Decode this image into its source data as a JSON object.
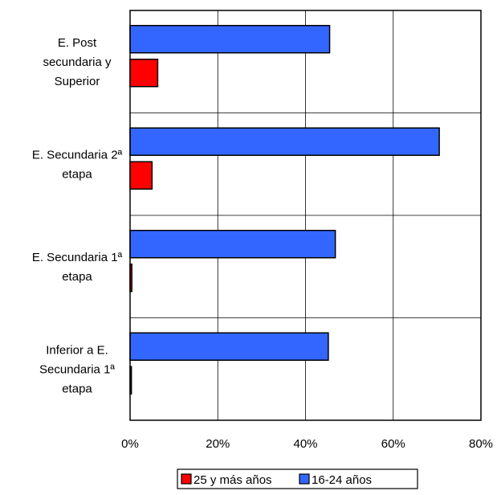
{
  "chart_data": {
    "type": "bar",
    "orientation": "horizontal",
    "categories": [
      [
        "E. Post",
        "secundaria y",
        "Superior"
      ],
      [
        "E. Secundaria 2ª",
        "etapa"
      ],
      [
        "E. Secundaria 1ª",
        "etapa"
      ],
      [
        "Inferior a E.",
        "Secundaria 1ª",
        "etapa"
      ]
    ],
    "series": [
      {
        "name": "16-24 años",
        "color": "#3366ff",
        "values": [
          45.5,
          70.5,
          46.8,
          45.2
        ]
      },
      {
        "name": "25 y más años",
        "color": "#ff0000",
        "values": [
          6.3,
          5.0,
          0.4,
          0.3
        ]
      }
    ],
    "xlim": [
      0,
      80
    ],
    "x_ticks": [
      0,
      20,
      40,
      60,
      80
    ],
    "tick_format": "{v}%",
    "grid": true,
    "legend_position": "bottom",
    "legend_order": [
      "25 y más años",
      "16-24 años"
    ]
  }
}
